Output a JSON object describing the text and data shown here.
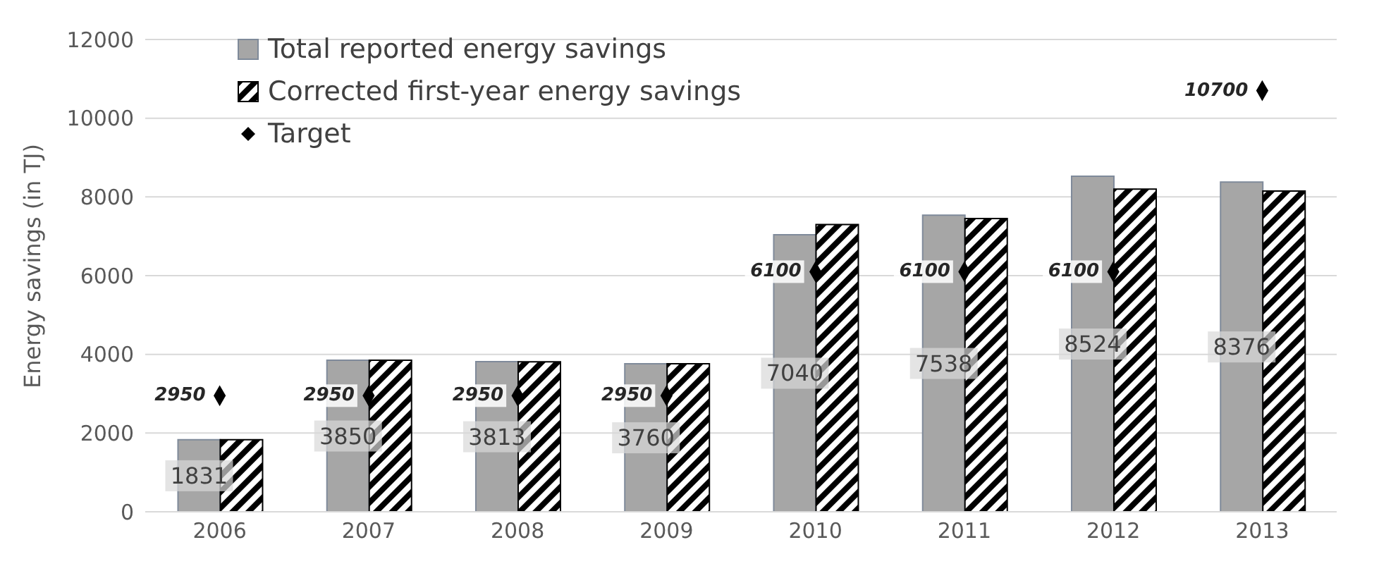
{
  "chart_data": {
    "type": "bar",
    "ylabel": "Energy savings (in TJ)",
    "categories": [
      "2006",
      "2007",
      "2008",
      "2009",
      "2010",
      "2011",
      "2012",
      "2013"
    ],
    "series": [
      {
        "name": "Total reported energy savings",
        "color": "#a6a6a6",
        "values": [
          1831,
          3850,
          3813,
          3760,
          7040,
          7538,
          8524,
          8376
        ],
        "value_labels": [
          "1831",
          "3850",
          "3813",
          "3760",
          "7040",
          "7538",
          "8524",
          "8376"
        ]
      },
      {
        "name": "Corrected first-year energy savings",
        "color": "#000000",
        "values": [
          1830,
          3850,
          3810,
          3760,
          7300,
          7450,
          8200,
          8150
        ]
      },
      {
        "name": "Target",
        "type": "scatter",
        "color": "#000000",
        "marker": "diamond",
        "values": [
          2950,
          2950,
          2950,
          2950,
          6100,
          6100,
          6100,
          10700
        ],
        "value_labels": [
          "2950",
          "2950",
          "2950",
          "2950",
          "6100",
          "6100",
          "6100",
          "10700"
        ]
      }
    ],
    "ylim": [
      0,
      12000
    ],
    "yticks": [
      0,
      2000,
      4000,
      6000,
      8000,
      10000,
      12000
    ],
    "grid": "y",
    "legend": "top left"
  }
}
